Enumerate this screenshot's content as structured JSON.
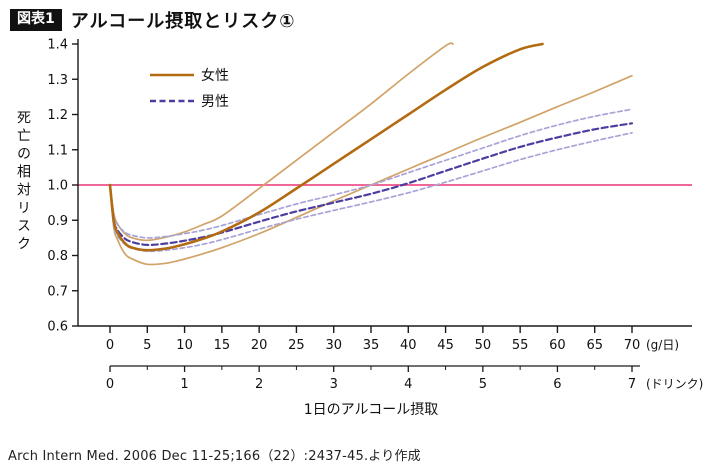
{
  "header": {
    "tag": "図表1",
    "title": "アルコール摂取とリスク①"
  },
  "source": "Arch Intern Med. 2006 Dec 11-25;166（22）:2437-45.より作成",
  "chart_data": {
    "type": "line",
    "title": "アルコール摂取とリスク①",
    "ylabel": "死亡の相対リスク",
    "xlabel": "1日のアルコール摂取",
    "ylim": [
      0.6,
      1.4
    ],
    "y_ticks": [
      0.6,
      0.7,
      0.8,
      0.9,
      1.0,
      1.1,
      1.2,
      1.3,
      1.4
    ],
    "x_g": {
      "min": 0,
      "max": 70,
      "ticks": [
        0,
        5,
        10,
        15,
        20,
        25,
        30,
        35,
        40,
        45,
        50,
        55,
        60,
        65,
        70
      ],
      "unit": "(g/日)"
    },
    "x_drinks": {
      "min": 0,
      "max": 7,
      "ticks": [
        0,
        1,
        2,
        3,
        4,
        5,
        6,
        7
      ],
      "minor_step": 0.5,
      "unit": "(ドリンク)"
    },
    "refline": {
      "y": 1.0,
      "color": "#f0689a",
      "width": 2
    },
    "colors": {
      "female": "#b26b11",
      "female_ci": "#d2a368",
      "male": "#4c3da0",
      "male_ci": "#a9a4d8",
      "axis": "#1a1a1a"
    },
    "legend": [
      {
        "label": "女性",
        "color_key": "female",
        "dash": null
      },
      {
        "label": "男性",
        "color_key": "male",
        "dash": "6,3.5"
      }
    ],
    "series": [
      {
        "id": "female-ci-upper",
        "group": "female_ci",
        "dash": null,
        "width": 1.7,
        "x": [
          0,
          0.5,
          1,
          2,
          3,
          5,
          7.5,
          10,
          12.5,
          15,
          20,
          25,
          30,
          35,
          40,
          45,
          46
        ],
        "y": [
          1.0,
          0.92,
          0.89,
          0.862,
          0.85,
          0.843,
          0.852,
          0.867,
          0.888,
          0.912,
          0.99,
          1.07,
          1.15,
          1.23,
          1.315,
          1.395,
          1.4
        ]
      },
      {
        "id": "female-ci-lower",
        "group": "female_ci",
        "dash": null,
        "width": 1.7,
        "x": [
          0,
          0.5,
          1,
          2,
          3,
          5,
          7.5,
          10,
          12.5,
          15,
          20,
          25,
          30,
          35,
          40,
          45,
          50,
          55,
          60,
          65,
          70
        ],
        "y": [
          1.0,
          0.88,
          0.845,
          0.805,
          0.79,
          0.775,
          0.778,
          0.79,
          0.805,
          0.822,
          0.862,
          0.908,
          0.955,
          1.0,
          1.045,
          1.09,
          1.135,
          1.178,
          1.222,
          1.265,
          1.31
        ]
      },
      {
        "id": "male-ci-upper",
        "group": "male_ci",
        "dash": "4.5,3",
        "width": 1.7,
        "x": [
          0,
          0.5,
          1,
          2,
          3,
          5,
          7.5,
          10,
          12.5,
          15,
          20,
          25,
          30,
          35,
          40,
          45,
          50,
          55,
          60,
          65,
          70
        ],
        "y": [
          1.0,
          0.915,
          0.888,
          0.866,
          0.857,
          0.85,
          0.854,
          0.862,
          0.872,
          0.885,
          0.916,
          0.946,
          0.972,
          1.0,
          1.035,
          1.07,
          1.105,
          1.14,
          1.17,
          1.195,
          1.215
        ]
      },
      {
        "id": "male-ci-lower",
        "group": "male_ci",
        "dash": "4.5,3",
        "width": 1.7,
        "x": [
          0,
          0.5,
          1,
          2,
          3,
          5,
          7.5,
          10,
          12.5,
          15,
          20,
          25,
          30,
          35,
          40,
          45,
          50,
          55,
          60,
          65,
          70
        ],
        "y": [
          1.0,
          0.885,
          0.856,
          0.832,
          0.82,
          0.812,
          0.815,
          0.822,
          0.832,
          0.845,
          0.875,
          0.903,
          0.928,
          0.952,
          0.978,
          1.008,
          1.04,
          1.072,
          1.1,
          1.125,
          1.148
        ]
      },
      {
        "id": "male-main",
        "group": "male",
        "dash": "6,3.5",
        "width": 2.2,
        "x": [
          0,
          0.5,
          1,
          2,
          3,
          5,
          7.5,
          10,
          12.5,
          15,
          20,
          25,
          30,
          35,
          40,
          45,
          50,
          55,
          60,
          65,
          70
        ],
        "y": [
          1.0,
          0.9,
          0.872,
          0.848,
          0.838,
          0.83,
          0.834,
          0.842,
          0.852,
          0.865,
          0.896,
          0.925,
          0.95,
          0.975,
          1.005,
          1.04,
          1.075,
          1.108,
          1.135,
          1.158,
          1.175
        ]
      },
      {
        "id": "female-main",
        "group": "female",
        "dash": null,
        "width": 2.6,
        "x": [
          0,
          0.5,
          1,
          2,
          3,
          5,
          7.5,
          10,
          12.5,
          15,
          20,
          25,
          30,
          35,
          40,
          45,
          50,
          55,
          58
        ],
        "y": [
          1.0,
          0.9,
          0.865,
          0.835,
          0.822,
          0.815,
          0.82,
          0.832,
          0.848,
          0.868,
          0.922,
          0.99,
          1.06,
          1.13,
          1.2,
          1.27,
          1.335,
          1.385,
          1.4
        ]
      }
    ]
  }
}
